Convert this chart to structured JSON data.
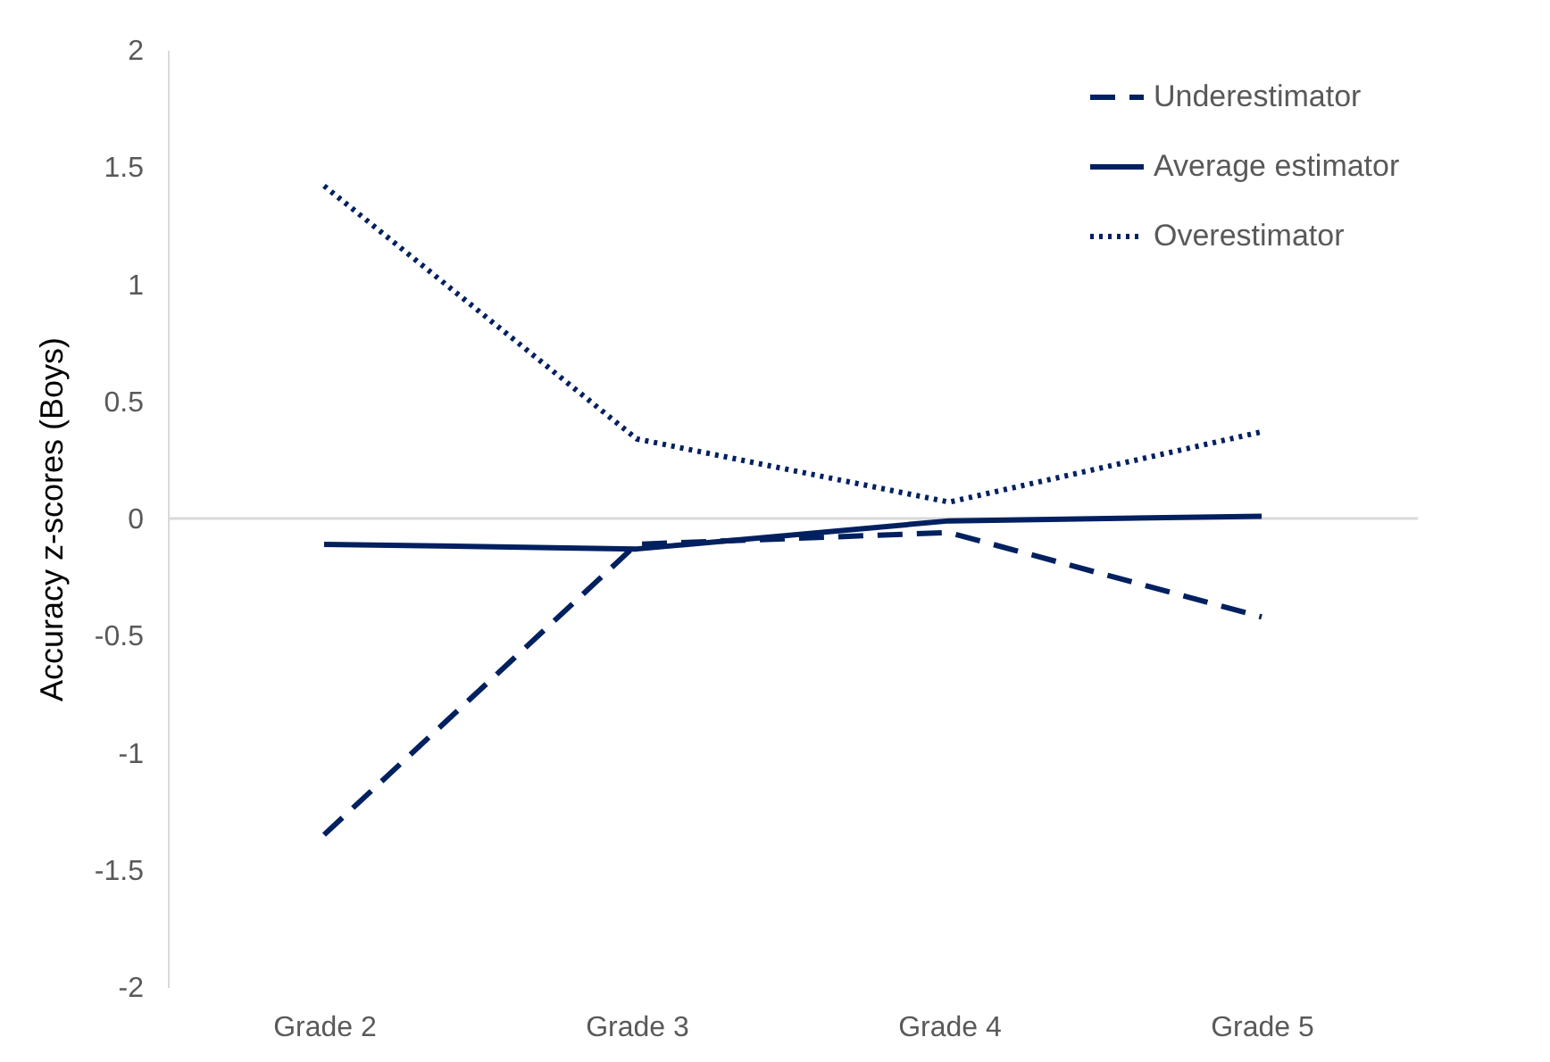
{
  "chart_data": {
    "type": "line",
    "ylabel": "Accuracy z-scores (Boys)",
    "categories": [
      "Grade 2",
      "Grade 3",
      "Grade 4",
      "Grade 5"
    ],
    "series": [
      {
        "name": "Underestimator",
        "color": "#002060",
        "line_style": "dashed",
        "values": [
          -1.35,
          -0.11,
          -0.06,
          -0.42
        ]
      },
      {
        "name": "Average estimator",
        "color": "#002060",
        "line_style": "solid",
        "values": [
          -0.11,
          -0.13,
          -0.01,
          0.01
        ]
      },
      {
        "name": "Overestimator",
        "color": "#002060",
        "line_style": "dotted",
        "values": [
          1.42,
          0.34,
          0.07,
          0.37
        ]
      }
    ],
    "ylim": [
      -2,
      2
    ],
    "yticks": [
      -2,
      -1.5,
      -1,
      -0.5,
      0,
      0.5,
      1,
      1.5,
      2
    ],
    "grid": false,
    "legend": "top right",
    "marker": "none",
    "ref_lines": [
      {
        "axis": "y",
        "value": 0,
        "color": "#d9d9d9"
      }
    ]
  }
}
